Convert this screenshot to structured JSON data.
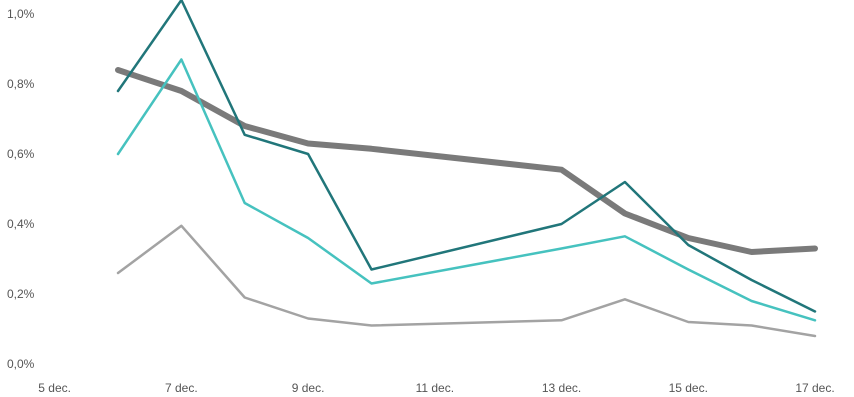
{
  "chart_data": {
    "type": "line",
    "title": "",
    "xlabel": "",
    "ylabel": "",
    "x_ticks": [
      5,
      7,
      9,
      11,
      13,
      15,
      17
    ],
    "x_tick_labels": [
      "5 dec.",
      "7 dec.",
      "9 dec.",
      "11 dec.",
      "13 dec.",
      "15 dec.",
      "17 dec."
    ],
    "y_ticks": [
      0.0,
      0.2,
      0.4,
      0.6,
      0.8,
      1.0
    ],
    "y_tick_labels": [
      "0,0%",
      "0,2%",
      "0,4%",
      "0,6%",
      "0,8%",
      "1,0%"
    ],
    "xlim": [
      5,
      17
    ],
    "ylim": [
      0.0,
      1.0
    ],
    "grid": false,
    "legend": "none",
    "series": [
      {
        "color": "#7a7a7a",
        "x": [
          6,
          7,
          8,
          9,
          10,
          13,
          14,
          15,
          16,
          17
        ],
        "values": [
          0.84,
          0.78,
          0.68,
          0.63,
          0.615,
          0.555,
          0.43,
          0.36,
          0.32,
          0.33
        ]
      },
      {
        "color": "#21767a",
        "x": [
          6,
          7,
          8,
          9,
          10,
          13,
          14,
          15,
          16,
          17
        ],
        "values": [
          0.78,
          1.04,
          0.655,
          0.6,
          0.27,
          0.4,
          0.52,
          0.34,
          0.24,
          0.15
        ]
      },
      {
        "color": "#46c2bf",
        "x": [
          6,
          7,
          8,
          9,
          10,
          13,
          14,
          15,
          16,
          17
        ],
        "values": [
          0.6,
          0.87,
          0.46,
          0.36,
          0.23,
          0.33,
          0.365,
          0.27,
          0.18,
          0.125
        ]
      },
      {
        "color": "#a3a3a3",
        "x": [
          6,
          7,
          8,
          9,
          10,
          13,
          14,
          15,
          16,
          17
        ],
        "values": [
          0.26,
          0.395,
          0.19,
          0.13,
          0.11,
          0.125,
          0.185,
          0.12,
          0.11,
          0.08
        ]
      }
    ]
  }
}
